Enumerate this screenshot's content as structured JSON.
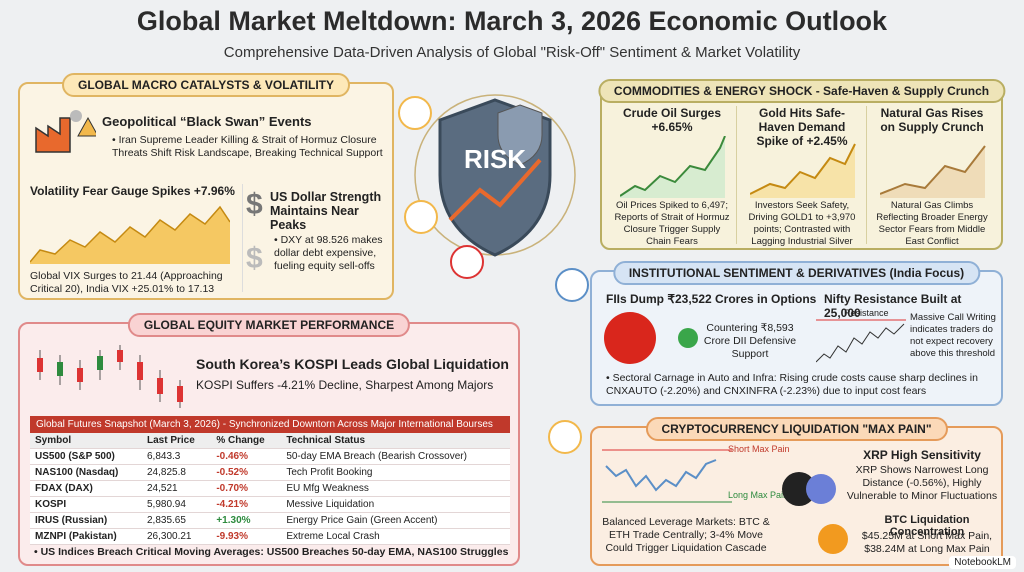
{
  "header": {
    "title": "Global Market Meltdown: March 3, 2026 Economic Outlook",
    "subtitle": "Comprehensive Data-Driven Analysis of Global \"Risk-Off\" Sentiment & Market Volatility"
  },
  "macro": {
    "heading": "GLOBAL MACRO CATALYSTS & VOLATILITY",
    "geo": {
      "title": "Geopolitical “Black Swan” Events",
      "text": "• Iran Supreme Leader Killing & Strait of Hormuz Closure Threats Shift Risk Landscape, Breaking Technical Support"
    },
    "vix": {
      "title": "Volatility Fear Gauge Spikes +7.96%",
      "text": "Global VIX Surges to 21.44 (Approaching Critical 20), India VIX +25.01% to 17.13"
    },
    "usd": {
      "title": "US Dollar Strength Maintains Near Peaks",
      "text": "• DXY at 98.526 makes dollar debt expensive, fueling equity sell-offs"
    }
  },
  "center": {
    "risk_label": "RISK"
  },
  "commodities": {
    "heading": "COMMODITIES & ENERGY SHOCK - Safe-Haven & Supply Crunch",
    "items": [
      {
        "title": "Crude Oil Surges +6.65%",
        "text": "Oil Prices Spiked to 6,497; Reports of Strait of Hormuz Closure Trigger Supply Chain Fears"
      },
      {
        "title": "Gold Hits Safe-Haven Demand Spike of +2.45%",
        "text": "Investors Seek Safety, Driving GOLD1 to +3,970 points; Contrasted with Lagging Industrial Silver"
      },
      {
        "title": "Natural Gas Rises on Supply Crunch",
        "text": "Natural Gas Climbs Reflecting Broader Energy Sector Fears from Middle East Conflict"
      }
    ]
  },
  "equity": {
    "heading": "GLOBAL EQUITY MARKET PERFORMANCE",
    "kospi": {
      "title": "South Korea’s KOSPI Leads Global Liquidation",
      "text": "KOSPI Suffers -4.21% Decline, Sharpest Among Majors"
    },
    "table": {
      "caption": "Global Futures Snapshot (March 3, 2026) - Synchronized Downtorn Across Major International Bourses",
      "columns": [
        "Symbol",
        "Last Price",
        "% Change",
        "Technical Status"
      ],
      "rows": [
        [
          "US500 (S&P 500)",
          "6,843.3",
          "-0.46%",
          "50-day EMA Breach (Bearish Crossover)"
        ],
        [
          "NAS100 (Nasdaq)",
          "24,825.8",
          "-0.52%",
          "Tech Profit Booking"
        ],
        [
          "FDAX (DAX)",
          "24,521",
          "-0.70%",
          "EU Mfg  Weakness"
        ],
        [
          "KOSPI",
          "5,980.94",
          "-4.21%",
          "Messive Liquidation"
        ],
        [
          "IRUS (Russian)",
          "2,835.65",
          "+1.30%",
          "Energy Price Gain (Green Accent)"
        ],
        [
          "MZNPI (Pakistan)",
          "26,300.21",
          "-9.93%",
          "Extreme Local Crash"
        ]
      ]
    },
    "footnote": "• US Indices Breach Critical Moving Averages: US500 Breaches 50-day EMA, NAS100 Struggles"
  },
  "institutional": {
    "heading": "INSTITUTIONAL SENTIMENT & DERIVATIVES (India Focus)",
    "fii": {
      "title": "FIIs Dump ₹23,522 Crores in Options",
      "text": "Countering ₹8,593 Crore DII Defensive Support"
    },
    "nifty": {
      "title": "Nifty Resistance Built at 25,000",
      "chart_label": "Resistance",
      "text": "Massive Call Writing indicates traders do not expect recovery above this threshold"
    },
    "note": "• Sectoral Carnage in Auto and Infra: Rising crude costs cause sharp declines in CNXAUTO (-2.20%) and CNXINFRA (-2.23%) due to input cost fears"
  },
  "crypto": {
    "heading": "CRYPTOCURRENCY LIQUIDATION \"MAX PAIN\"",
    "chart": {
      "short_label": "Short Max Pain",
      "long_label": "Long Max Pain"
    },
    "chart_caption": "Balanced Leverage Markets: BTC & ETH Trade Centrally; 3-4% Move Could Trigger Liquidation Cascade",
    "xrp": {
      "title": "XRP High Sensitivity",
      "text": "XRP Shows Narrowest Long Distance (-0.56%), Highly Vulnerable to Minor Fluctuations"
    },
    "btc": {
      "title": "BTC Liquidation Concentration",
      "text": "$45.25M at Short Max Pain, $38.24M at Long Max Pain"
    }
  },
  "brand": "NotebookLM"
}
